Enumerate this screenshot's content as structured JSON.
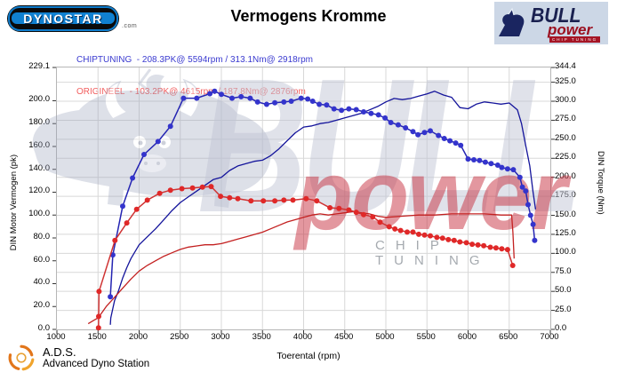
{
  "header": {
    "dynostar_logo_text": "DYNOSTAR",
    "dynostar_domain": ".com",
    "title": "Vermogens Kromme",
    "bull_logo": {
      "line1": "BULL",
      "line2": "power",
      "line3": "CHIP TUNING"
    }
  },
  "legend": [
    {
      "name": "CHIPTUNING",
      "text": "CHIPTUNING  - 208.3PK@ 5594rpm / 313.1Nm@ 2918rpm",
      "color": "#3a3ad0"
    },
    {
      "name": "ORIGINEEL",
      "text": "ORIGINEEL  - 103.2PK@ 4615rpm / 187.8Nm@ 2876rpm",
      "color": "#f25e5e"
    }
  ],
  "watermarks": {
    "bull_text": "BULL",
    "power_text": "power",
    "chip_text": "CHIP TUNING"
  },
  "footer": {
    "ads_abbr": "A.D.S.",
    "ads_name": "Advanced Dyno Station"
  },
  "chart_data": {
    "type": "line",
    "title": "Vermogens Kromme",
    "xlabel": "Toerental (rpm)",
    "ylabel_left": "DIN Motor Vermogen (pk)",
    "ylabel_right": "DIN Torque (Nm)",
    "x_range": [
      1000,
      7000
    ],
    "y_left_range": [
      0,
      229.1
    ],
    "y_right_range": [
      0,
      344.4
    ],
    "grid": true,
    "x_ticks": [
      "1000",
      "1500",
      "2000",
      "2500",
      "3000",
      "3500",
      "4000",
      "4500",
      "5000",
      "5500",
      "6000",
      "6500",
      "7000"
    ],
    "y_left_ticks": [
      [
        229.1,
        "229.1"
      ],
      [
        200,
        "200.0"
      ],
      [
        180,
        "180.0"
      ],
      [
        160,
        "160.0"
      ],
      [
        140,
        "140.0"
      ],
      [
        120,
        "120.0"
      ],
      [
        100,
        "100.0"
      ],
      [
        80,
        "80.0"
      ],
      [
        60,
        "60.0"
      ],
      [
        40,
        "40.0"
      ],
      [
        20,
        "20.0"
      ],
      [
        0,
        "0.0"
      ]
    ],
    "y_right_ticks": [
      [
        344.4,
        "344.4"
      ],
      [
        325,
        "325.0"
      ],
      [
        300,
        "300.0"
      ],
      [
        275,
        "275.0"
      ],
      [
        250,
        "250.0"
      ],
      [
        225,
        "225.0"
      ],
      [
        200,
        "200.0"
      ],
      [
        175,
        "175.0"
      ],
      [
        150,
        "150.0"
      ],
      [
        125,
        "125.0"
      ],
      [
        100,
        "100.0"
      ],
      [
        75,
        "75.0"
      ],
      [
        50,
        "50.0"
      ],
      [
        25,
        "25.0"
      ],
      [
        0,
        "0.0"
      ]
    ],
    "series": [
      {
        "name": "chiptuning-vermogen",
        "run": "CHIPTUNING",
        "unit": "pk",
        "axis": "left",
        "peak": "208.3PK@ 5594rpm",
        "color": "#14149b",
        "marker": false,
        "points": [
          [
            1650,
            4
          ],
          [
            1655,
            10
          ],
          [
            1700,
            25
          ],
          [
            1750,
            34
          ],
          [
            1800,
            45
          ],
          [
            1850,
            54
          ],
          [
            1900,
            62
          ],
          [
            1950,
            68
          ],
          [
            2000,
            74
          ],
          [
            2100,
            81
          ],
          [
            2200,
            88
          ],
          [
            2300,
            96
          ],
          [
            2400,
            104
          ],
          [
            2500,
            111
          ],
          [
            2600,
            116
          ],
          [
            2700,
            121
          ],
          [
            2800,
            126
          ],
          [
            2900,
            131
          ],
          [
            3000,
            133
          ],
          [
            3100,
            139
          ],
          [
            3200,
            143
          ],
          [
            3300,
            145
          ],
          [
            3400,
            147
          ],
          [
            3500,
            148
          ],
          [
            3600,
            152
          ],
          [
            3700,
            158
          ],
          [
            3800,
            165
          ],
          [
            3900,
            172
          ],
          [
            4000,
            177
          ],
          [
            4100,
            178
          ],
          [
            4200,
            180
          ],
          [
            4300,
            181
          ],
          [
            4400,
            183
          ],
          [
            4500,
            185
          ],
          [
            4600,
            187
          ],
          [
            4700,
            189
          ],
          [
            4800,
            192
          ],
          [
            4900,
            195
          ],
          [
            5000,
            199
          ],
          [
            5100,
            202
          ],
          [
            5200,
            201
          ],
          [
            5300,
            202
          ],
          [
            5400,
            204
          ],
          [
            5500,
            206
          ],
          [
            5594,
            208.3
          ],
          [
            5700,
            205
          ],
          [
            5800,
            203
          ],
          [
            5900,
            194
          ],
          [
            6000,
            193
          ],
          [
            6100,
            197
          ],
          [
            6200,
            199
          ],
          [
            6300,
            198
          ],
          [
            6400,
            197
          ],
          [
            6500,
            198
          ],
          [
            6600,
            192
          ],
          [
            6650,
            180
          ],
          [
            6700,
            161
          ],
          [
            6750,
            143
          ],
          [
            6790,
            120
          ],
          [
            6820,
            105
          ]
        ]
      },
      {
        "name": "chiptuning-koppel",
        "run": "CHIPTUNING",
        "unit": "Nm",
        "axis": "right",
        "peak": "313.1Nm@ 2918rpm",
        "color": "#2424b2",
        "marker": true,
        "marker_color": "#3434cc",
        "points": [
          [
            1650,
            43
          ],
          [
            1680,
            98
          ],
          [
            1800,
            162
          ],
          [
            1920,
            199
          ],
          [
            2060,
            230
          ],
          [
            2230,
            247
          ],
          [
            2380,
            267
          ],
          [
            2540,
            304
          ],
          [
            2700,
            304
          ],
          [
            2860,
            310
          ],
          [
            2918,
            313.1
          ],
          [
            3000,
            309
          ],
          [
            3130,
            304
          ],
          [
            3240,
            306
          ],
          [
            3350,
            304
          ],
          [
            3440,
            299
          ],
          [
            3550,
            296
          ],
          [
            3650,
            298
          ],
          [
            3760,
            299
          ],
          [
            3850,
            300
          ],
          [
            3970,
            304
          ],
          [
            4050,
            303
          ],
          [
            4110,
            300
          ],
          [
            4190,
            296
          ],
          [
            4280,
            295
          ],
          [
            4370,
            290
          ],
          [
            4460,
            288
          ],
          [
            4550,
            290
          ],
          [
            4640,
            289
          ],
          [
            4730,
            286
          ],
          [
            4820,
            284
          ],
          [
            4910,
            282
          ],
          [
            4990,
            278
          ],
          [
            5060,
            272
          ],
          [
            5150,
            269
          ],
          [
            5240,
            265
          ],
          [
            5330,
            260
          ],
          [
            5390,
            256
          ],
          [
            5470,
            259
          ],
          [
            5540,
            261
          ],
          [
            5640,
            255
          ],
          [
            5710,
            251
          ],
          [
            5780,
            248
          ],
          [
            5850,
            245
          ],
          [
            5910,
            242
          ],
          [
            6000,
            224
          ],
          [
            6070,
            223
          ],
          [
            6140,
            222
          ],
          [
            6210,
            220
          ],
          [
            6280,
            218
          ],
          [
            6360,
            216
          ],
          [
            6410,
            213
          ],
          [
            6480,
            211
          ],
          [
            6550,
            210
          ],
          [
            6630,
            200
          ],
          [
            6660,
            187
          ],
          [
            6700,
            182
          ],
          [
            6730,
            164
          ],
          [
            6760,
            150
          ],
          [
            6790,
            138
          ],
          [
            6810,
            117
          ]
        ]
      },
      {
        "name": "origineel-vermogen",
        "run": "ORIGINEEL",
        "unit": "pk",
        "axis": "left",
        "peak": "103.2PK@ 4615rpm",
        "color": "#c32020",
        "marker": false,
        "points": [
          [
            1380,
            5
          ],
          [
            1450,
            8
          ],
          [
            1500,
            10
          ],
          [
            1550,
            15
          ],
          [
            1600,
            20
          ],
          [
            1700,
            28
          ],
          [
            1800,
            36
          ],
          [
            1900,
            44
          ],
          [
            2000,
            51
          ],
          [
            2100,
            56
          ],
          [
            2200,
            60
          ],
          [
            2300,
            64
          ],
          [
            2400,
            67
          ],
          [
            2500,
            70
          ],
          [
            2600,
            72
          ],
          [
            2700,
            73
          ],
          [
            2800,
            74
          ],
          [
            2900,
            74
          ],
          [
            3000,
            75
          ],
          [
            3100,
            77
          ],
          [
            3200,
            79
          ],
          [
            3300,
            81
          ],
          [
            3400,
            83
          ],
          [
            3500,
            85
          ],
          [
            3600,
            88
          ],
          [
            3700,
            91
          ],
          [
            3800,
            94
          ],
          [
            3900,
            96
          ],
          [
            4000,
            98
          ],
          [
            4100,
            100
          ],
          [
            4200,
            101
          ],
          [
            4300,
            100
          ],
          [
            4400,
            101
          ],
          [
            4500,
            102
          ],
          [
            4615,
            103.2
          ],
          [
            4700,
            102
          ],
          [
            4800,
            101
          ],
          [
            4900,
            99
          ],
          [
            5000,
            98
          ],
          [
            5200,
            99
          ],
          [
            5400,
            100
          ],
          [
            5600,
            100
          ],
          [
            5800,
            101
          ],
          [
            6000,
            101
          ],
          [
            6200,
            101
          ],
          [
            6400,
            100
          ],
          [
            6500,
            100
          ],
          [
            6530,
            100
          ],
          [
            6545,
            85
          ],
          [
            6560,
            62
          ]
        ]
      },
      {
        "name": "origineel-koppel",
        "run": "ORIGINEEL",
        "unit": "Nm",
        "axis": "right",
        "peak": "187.8Nm@ 2876rpm",
        "color": "#cf3333",
        "marker": true,
        "marker_color": "#e02828",
        "points": [
          [
            1506,
            2
          ],
          [
            1508,
            17
          ],
          [
            1512,
            50
          ],
          [
            1706,
            117
          ],
          [
            1850,
            140
          ],
          [
            1970,
            158
          ],
          [
            2100,
            170
          ],
          [
            2250,
            179
          ],
          [
            2380,
            183
          ],
          [
            2520,
            185
          ],
          [
            2650,
            186
          ],
          [
            2770,
            187
          ],
          [
            2876,
            187.8
          ],
          [
            2990,
            175
          ],
          [
            3100,
            173
          ],
          [
            3200,
            172
          ],
          [
            3360,
            169
          ],
          [
            3510,
            169
          ],
          [
            3650,
            169
          ],
          [
            3760,
            170
          ],
          [
            3870,
            170
          ],
          [
            4030,
            172
          ],
          [
            4160,
            169
          ],
          [
            4320,
            160
          ],
          [
            4430,
            159
          ],
          [
            4550,
            157
          ],
          [
            4640,
            154
          ],
          [
            4730,
            151
          ],
          [
            4840,
            148
          ],
          [
            4930,
            141
          ],
          [
            5040,
            135
          ],
          [
            5110,
            132
          ],
          [
            5180,
            130
          ],
          [
            5260,
            128
          ],
          [
            5330,
            128
          ],
          [
            5400,
            125
          ],
          [
            5470,
            124
          ],
          [
            5540,
            123
          ],
          [
            5620,
            121
          ],
          [
            5690,
            120
          ],
          [
            5760,
            118
          ],
          [
            5830,
            117
          ],
          [
            5900,
            115
          ],
          [
            5980,
            114
          ],
          [
            6050,
            112
          ],
          [
            6120,
            111
          ],
          [
            6190,
            110
          ],
          [
            6270,
            108
          ],
          [
            6340,
            107
          ],
          [
            6410,
            106
          ],
          [
            6480,
            105
          ],
          [
            6543,
            84
          ]
        ]
      }
    ]
  }
}
